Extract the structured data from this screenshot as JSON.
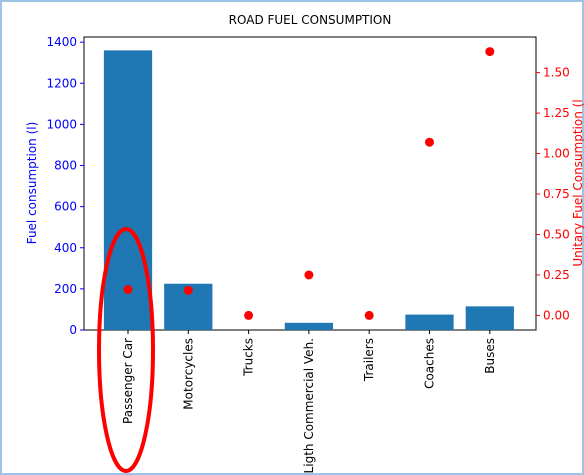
{
  "chart_data": {
    "type": "bar",
    "title": "ROAD FUEL CONSUMPTION",
    "ylabel": "Fuel consumption (l)",
    "y2label": "Unitary Fuel Consumption (l",
    "categories": [
      "Passenger Car",
      "Motorcycles",
      "Trucks",
      "Ligth Commercial Veh.",
      "Trailers",
      "Coaches",
      "Buses"
    ],
    "series": [
      {
        "name": "Fuel consumption (l)",
        "type": "bar",
        "color": "#1f77b4",
        "values": [
          1360,
          225,
          0,
          35,
          0,
          75,
          115
        ]
      },
      {
        "name": "Unitary Fuel Consumption",
        "type": "scatter",
        "axis": "y2",
        "color": "#ff0000",
        "values": [
          0.16,
          0.155,
          0,
          0.25,
          0,
          1.07,
          1.63
        ]
      }
    ],
    "ylim": [
      0,
      1425
    ],
    "yticks": [
      0,
      200,
      400,
      600,
      800,
      1000,
      1200,
      1400
    ],
    "y2lim": [
      -0.09,
      1.72
    ],
    "y2ticks": [
      {
        "value": 0,
        "label": "0.00"
      },
      {
        "value": 0.25,
        "label": "0.25"
      },
      {
        "value": 0.5,
        "label": "0.50"
      },
      {
        "value": 0.75,
        "label": "0.75"
      },
      {
        "value": 1,
        "label": "1.00"
      },
      {
        "value": 1.25,
        "label": "1.25"
      },
      {
        "value": 1.5,
        "label": "1.50"
      }
    ],
    "ycolor": "#0000ff",
    "y2color": "#ff0000"
  }
}
